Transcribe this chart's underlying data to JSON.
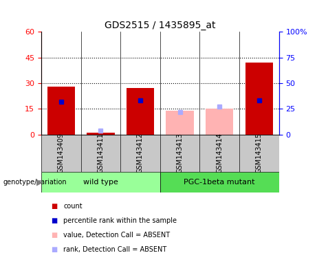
{
  "title": "GDS2515 / 1435895_at",
  "samples": [
    "GSM143409",
    "GSM143411",
    "GSM143412",
    "GSM143413",
    "GSM143414",
    "GSM143415"
  ],
  "count_values": [
    28,
    1,
    27,
    null,
    null,
    42
  ],
  "rank_values": [
    32,
    null,
    33,
    null,
    null,
    33
  ],
  "absent_value": [
    null,
    null,
    null,
    14,
    15,
    null
  ],
  "absent_rank": [
    null,
    4,
    null,
    22,
    27,
    null
  ],
  "left_ylim": [
    0,
    60
  ],
  "right_ylim": [
    0,
    100
  ],
  "left_yticks": [
    0,
    15,
    30,
    45,
    60
  ],
  "right_yticks": [
    0,
    25,
    50,
    75,
    100
  ],
  "right_yticklabels": [
    "0",
    "25",
    "50",
    "75",
    "100%"
  ],
  "bar_color_red": "#cc0000",
  "bar_color_pink": "#ffb3b3",
  "dot_color_blue": "#0000cc",
  "dot_color_lightblue": "#aaaaff",
  "group_color_wildtype": "#99ff99",
  "group_color_pgc": "#55dd55",
  "group_bg": "#c8c8c8",
  "dotted_yticks": [
    15,
    30,
    45
  ],
  "wt_label": "wild type",
  "pgc_label": "PGC-1beta mutant",
  "genotype_label": "genotype/variation",
  "legend_items": [
    {
      "label": "count",
      "color": "#cc0000"
    },
    {
      "label": "percentile rank within the sample",
      "color": "#0000cc"
    },
    {
      "label": "value, Detection Call = ABSENT",
      "color": "#ffb3b3"
    },
    {
      "label": "rank, Detection Call = ABSENT",
      "color": "#aaaaff"
    }
  ]
}
